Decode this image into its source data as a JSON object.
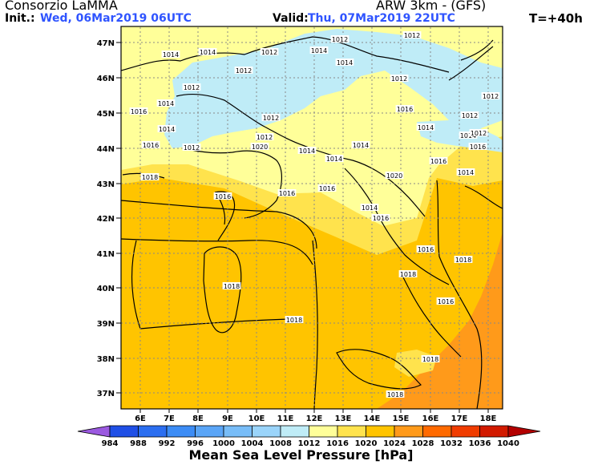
{
  "header": {
    "org": "Consorzio LaMMA",
    "model": "ARW 3km - (GFS)",
    "init_label": "Init.:",
    "init_value": "Wed, 06Mar2019 06UTC",
    "valid_label": "Valid:",
    "valid_value": "Thu, 07Mar2019 22UTC",
    "forecast_step": "T=+40h"
  },
  "axes": {
    "lat_labels": [
      "47N",
      "46N",
      "45N",
      "44N",
      "43N",
      "42N",
      "41N",
      "40N",
      "39N",
      "38N",
      "37N"
    ],
    "lon_labels": [
      "6E",
      "7E",
      "8E",
      "9E",
      "10E",
      "11E",
      "12E",
      "13E",
      "14E",
      "15E",
      "16E",
      "17E",
      "18E"
    ]
  },
  "isobar_labels": [
    "1012",
    "1012",
    "1014",
    "1014",
    "1012",
    "1014",
    "1014",
    "1012",
    "1012",
    "1012",
    "1012",
    "1014",
    "1016",
    "1016",
    "1014",
    "1012",
    "1012",
    "1016",
    "1014",
    "1012",
    "1012",
    "1014",
    "1016",
    "1018",
    "1014",
    "1016",
    "1016",
    "1016",
    "1014",
    "1016",
    "1014",
    "1016",
    "1016",
    "1018",
    "1018",
    "1018",
    "1018",
    "1016",
    "1018",
    "1018",
    "1020",
    "1020",
    "1014",
    "1014",
    "1012"
  ],
  "colorbar": {
    "levels": [
      "984",
      "988",
      "992",
      "996",
      "1000",
      "1004",
      "1008",
      "1012",
      "1016",
      "1020",
      "1024",
      "1028",
      "1032",
      "1036",
      "1040"
    ],
    "colors": [
      "#1f4fe6",
      "#2b6ef0",
      "#3c8cf5",
      "#5aa5f7",
      "#78bdf8",
      "#9ad4fa",
      "#bfecf7",
      "#ffff99",
      "#ffe34d",
      "#ffc400",
      "#ff9a1a",
      "#ff6a00",
      "#f03c00",
      "#d21a00"
    ],
    "low_cap_color": "#9b59e0",
    "high_cap_color": "#b30000",
    "title": "Mean Sea Level Pressure [hPa]"
  },
  "palette": {
    "lt1012": "#bfecf7",
    "p1012": "#ffff99",
    "p1016": "#ffe34d",
    "p1020": "#ffc400",
    "p1024": "#ff9a1a"
  }
}
